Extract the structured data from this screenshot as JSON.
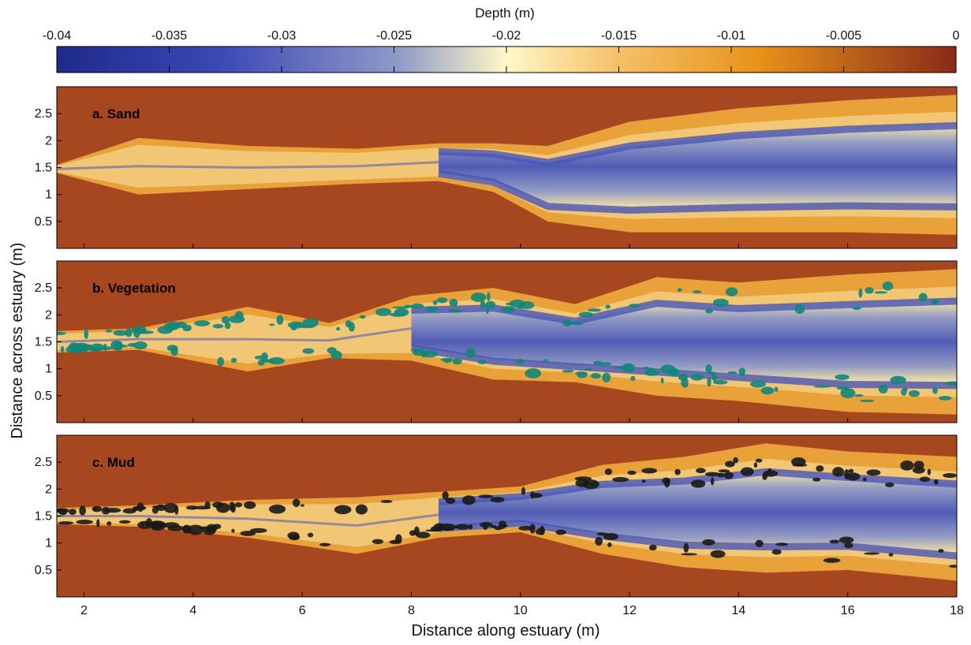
{
  "chart_data": [
    {
      "type": "heatmap",
      "title": "a. Sand",
      "xlabel": "Distance along estuary (m)",
      "ylabel": "Distance across estuary (m)",
      "xlim": [
        1.5,
        18
      ],
      "ylim": [
        0,
        3
      ],
      "xticks": [
        "2",
        "4",
        "6",
        "8",
        "10",
        "12",
        "14",
        "16",
        "18"
      ],
      "yticks": [
        "0.5",
        "1",
        "1.5",
        "2",
        "2.5"
      ],
      "channel_x": [
        1.5,
        3,
        5,
        7,
        8.5,
        9.5,
        10.5,
        12,
        14,
        16,
        18
      ],
      "channel_upper_y": [
        1.55,
        2.05,
        1.9,
        1.85,
        1.95,
        1.95,
        1.9,
        2.35,
        2.6,
        2.75,
        2.85
      ],
      "channel_lower_y": [
        1.4,
        1.0,
        1.1,
        1.2,
        1.25,
        1.05,
        0.5,
        0.3,
        0.3,
        0.3,
        0.25
      ],
      "colorbar": {
        "label": "Depth (m)",
        "range": [
          -0.04,
          0
        ]
      }
    },
    {
      "type": "heatmap",
      "title": "b. Vegetation",
      "xlabel": "Distance along estuary (m)",
      "ylabel": "Distance across estuary (m)",
      "xlim": [
        1.5,
        18
      ],
      "ylim": [
        0,
        3
      ],
      "xticks": [
        "2",
        "4",
        "6",
        "8",
        "10",
        "12",
        "14",
        "16",
        "18"
      ],
      "yticks": [
        "0.5",
        "1",
        "1.5",
        "2",
        "2.5"
      ],
      "channel_x": [
        1.5,
        3,
        5,
        6.5,
        8,
        9.5,
        11,
        12.5,
        14,
        16,
        18
      ],
      "channel_upper_y": [
        1.7,
        1.75,
        2.15,
        1.85,
        2.35,
        2.5,
        2.2,
        2.7,
        2.6,
        2.75,
        2.85
      ],
      "channel_lower_y": [
        1.3,
        1.35,
        0.95,
        1.2,
        1.15,
        0.8,
        0.75,
        0.5,
        0.4,
        0.2,
        0.15
      ],
      "colorbar": {
        "label": "Depth (m)",
        "range": [
          -0.04,
          0
        ]
      }
    },
    {
      "type": "heatmap",
      "title": "c. Mud",
      "xlabel": "Distance along estuary (m)",
      "ylabel": "Distance across estuary (m)",
      "xlim": [
        1.5,
        18
      ],
      "ylim": [
        0,
        3
      ],
      "xticks": [
        "2",
        "4",
        "6",
        "8",
        "10",
        "12",
        "14",
        "16",
        "18"
      ],
      "yticks": [
        "0.5",
        "1",
        "1.5",
        "2",
        "2.5"
      ],
      "channel_x": [
        1.5,
        3,
        5,
        7,
        8.5,
        10,
        11.5,
        13,
        14.5,
        16,
        18
      ],
      "channel_upper_y": [
        1.65,
        1.7,
        1.8,
        1.85,
        1.95,
        2.05,
        2.45,
        2.6,
        2.85,
        2.7,
        2.6
      ],
      "channel_lower_y": [
        1.35,
        1.3,
        1.1,
        0.8,
        1.1,
        1.2,
        0.8,
        0.55,
        0.45,
        0.5,
        0.3
      ],
      "colorbar": {
        "label": "Depth (m)",
        "range": [
          -0.04,
          0
        ]
      }
    }
  ],
  "colorbar": {
    "label": "Depth (m)",
    "ticks": [
      "-0.04",
      "-0.035",
      "-0.03",
      "-0.025",
      "-0.02",
      "-0.015",
      "-0.01",
      "-0.005",
      "0"
    ],
    "tick_values": [
      -0.04,
      -0.035,
      -0.03,
      -0.025,
      -0.02,
      -0.015,
      -0.01,
      -0.005,
      0
    ],
    "colors": [
      "#1f2a8a",
      "#3b48b5",
      "#8f9ac8",
      "#fff8c8",
      "#f5c26a",
      "#e8921a",
      "#8a2a18"
    ]
  },
  "colors": {
    "dry_bed": "#a6471f",
    "bank": "#e9a13a",
    "channel": "#4856b8",
    "bar": "#f8e6a6",
    "vegetation": "#11867a",
    "mud": "#1a1a1a"
  }
}
